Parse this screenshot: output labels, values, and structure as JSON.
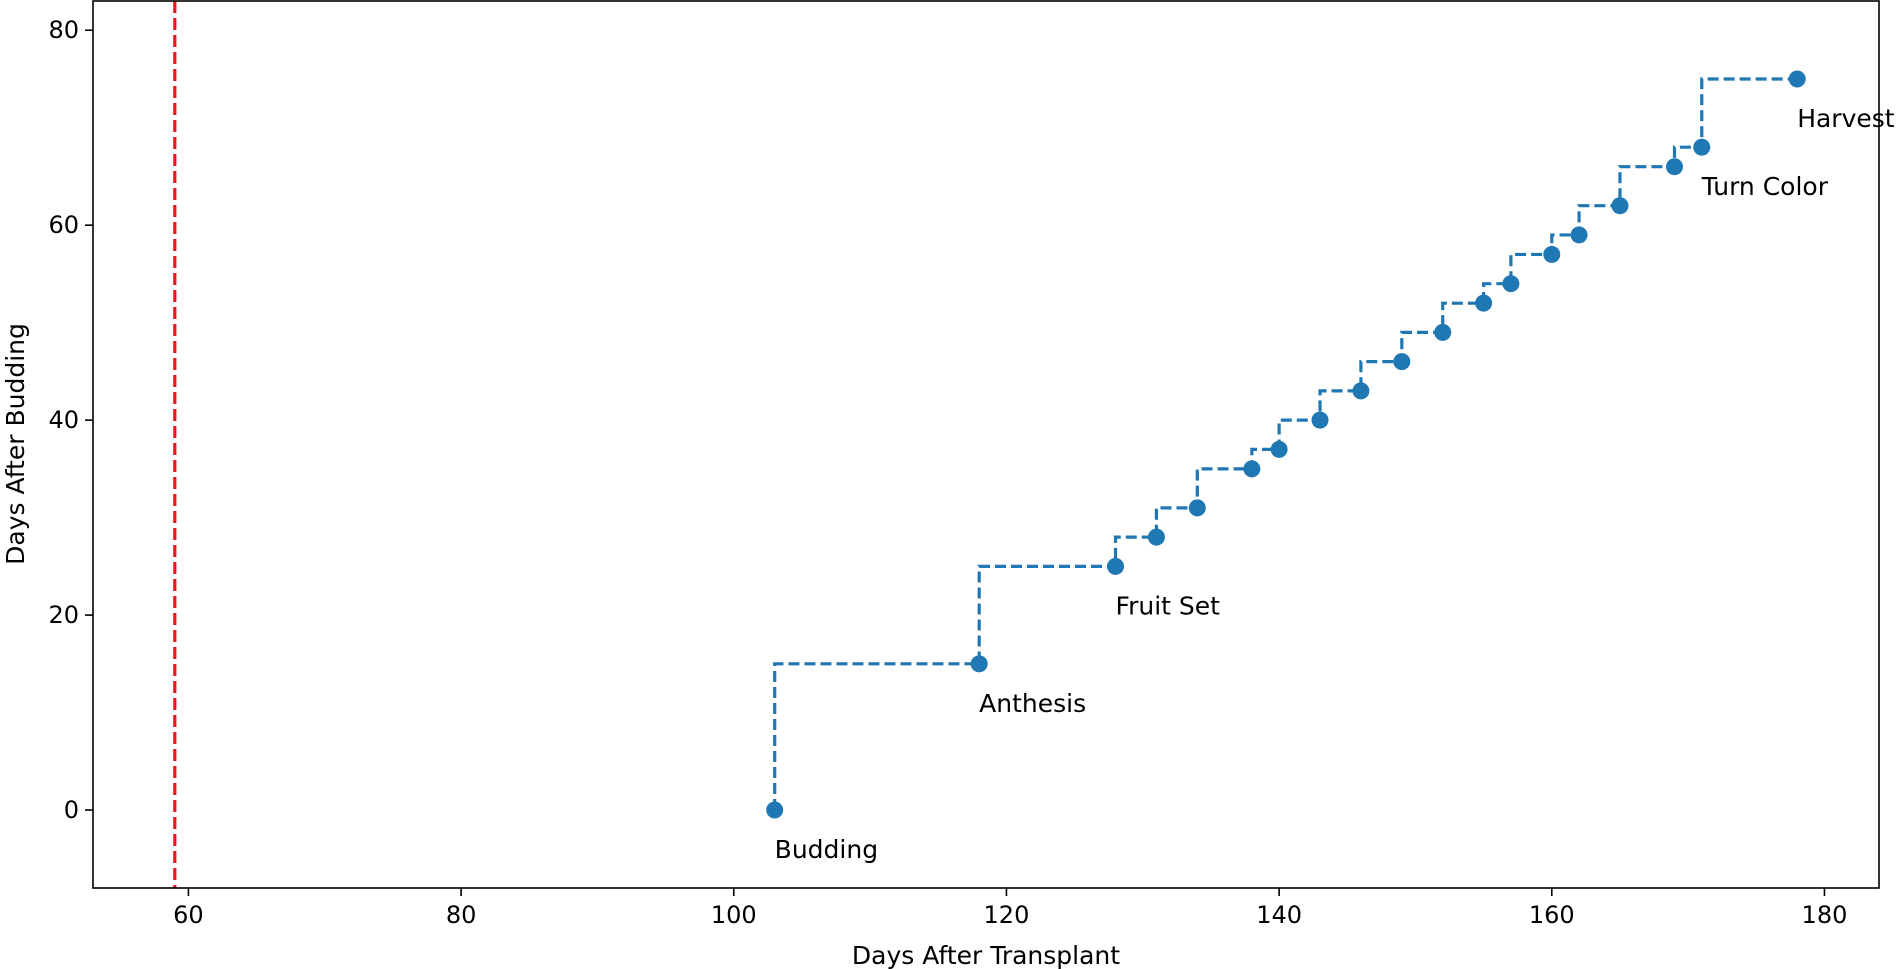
{
  "chart_data": {
    "type": "line",
    "title": "",
    "xlabel": "Days After Transplant",
    "ylabel": "Days After Budding",
    "xlim": [
      53,
      184
    ],
    "ylim": [
      -8,
      83
    ],
    "xticks": [
      60,
      80,
      100,
      120,
      140,
      160,
      180
    ],
    "yticks": [
      0,
      20,
      40,
      60,
      80
    ],
    "grid": false,
    "legend": "none",
    "reference_line": {
      "orientation": "vertical",
      "x": 59,
      "color": "#e41a1c",
      "style": "dashed"
    },
    "series": [
      {
        "color": "#1f77b4",
        "line_style": "dashed-step",
        "x": [
          103,
          118,
          128,
          131,
          134,
          138,
          140,
          143,
          146,
          149,
          152,
          155,
          157,
          160,
          162,
          165,
          169,
          171,
          178
        ],
        "y": [
          0,
          15,
          25,
          28,
          31,
          35,
          37,
          40,
          43,
          46,
          49,
          52,
          54,
          57,
          59,
          62,
          66,
          68,
          75
        ]
      }
    ],
    "annotations": [
      {
        "text": "Budding",
        "x": 103,
        "y": 0
      },
      {
        "text": "Anthesis",
        "x": 118,
        "y": 15
      },
      {
        "text": "Fruit Set",
        "x": 128,
        "y": 25
      },
      {
        "text": "Turn Color",
        "x": 171,
        "y": 68
      },
      {
        "text": "Harvest",
        "x": 178,
        "y": 75
      }
    ]
  }
}
